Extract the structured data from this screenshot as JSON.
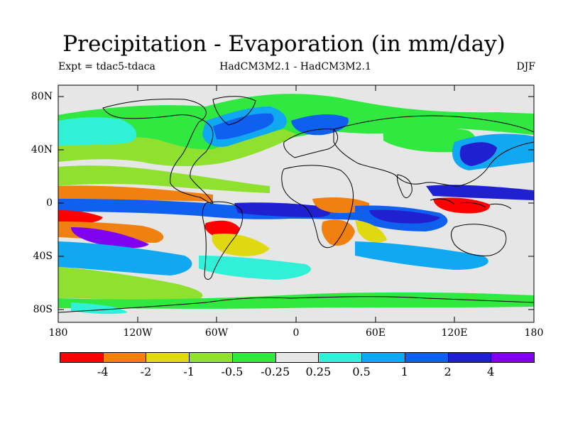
{
  "title": "Precipitation - Evaporation (in mm/day)",
  "subtitle_left": "Expt = tdac5-tdaca",
  "subtitle_center": "HadCM3M2.1 - HadCM3M2.1",
  "subtitle_right": "DJF",
  "y_ticks": [
    "80N",
    "40N",
    "0",
    "40S",
    "80S"
  ],
  "x_ticks": [
    "180",
    "120W",
    "60W",
    "0",
    "60E",
    "120E",
    "180"
  ],
  "colorbar": {
    "colors": [
      "#ff0000",
      "#f08010",
      "#e0d810",
      "#90e030",
      "#30e840",
      "#e6e6e6",
      "#30f0d8",
      "#10a8f0",
      "#1060f0",
      "#2020d0",
      "#8000f0"
    ],
    "labels": [
      "-4",
      "-2",
      "-1",
      "-0.5",
      "-0.25",
      "0.25",
      "0.5",
      "1",
      "2",
      "4"
    ]
  }
}
